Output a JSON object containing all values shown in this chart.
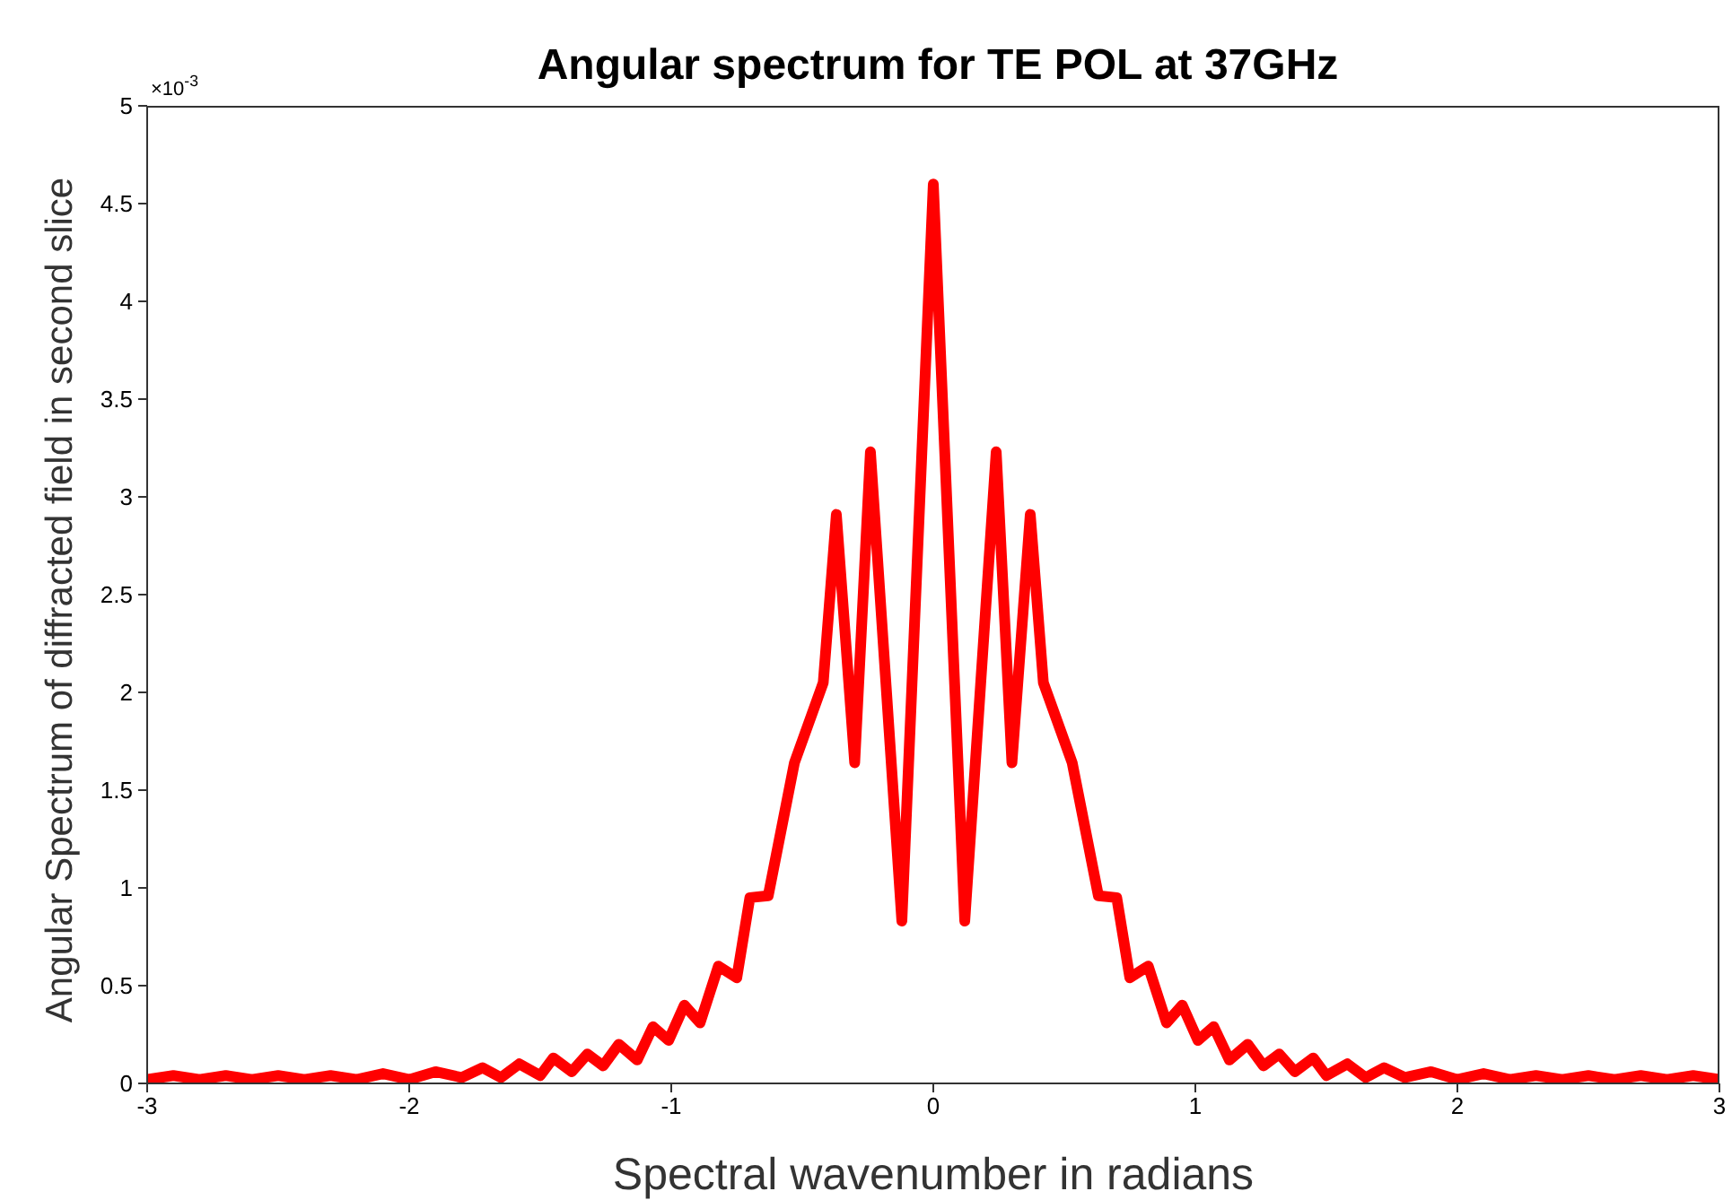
{
  "chart_data": {
    "type": "line",
    "title": "Angular spectrum for TE POL at 37GHz",
    "xlabel": "Spectral wavenumber in radians",
    "ylabel": "Angular Spectrum of diffracted field in second slice",
    "annotations": [
      "×10$^{-3}$"
    ],
    "series": [
      {
        "color": "#ff0000",
        "x": [
          -3.0,
          -2.9,
          -2.8,
          -2.7,
          -2.6,
          -2.5,
          -2.4,
          -2.3,
          -2.2,
          -2.1,
          -2.0,
          -1.9,
          -1.8,
          -1.72,
          -1.65,
          -1.58,
          -1.5,
          -1.45,
          -1.38,
          -1.32,
          -1.26,
          -1.2,
          -1.13,
          -1.07,
          -1.01,
          -0.95,
          -0.89,
          -0.82,
          -0.75,
          -0.7,
          -0.63,
          -0.53,
          -0.42,
          -0.37,
          -0.3,
          -0.24,
          -0.12,
          0,
          0.12,
          0.24,
          0.3,
          0.37,
          0.42,
          0.53,
          0.63,
          0.7,
          0.75,
          0.82,
          0.89,
          0.95,
          1.01,
          1.07,
          1.13,
          1.2,
          1.26,
          1.32,
          1.38,
          1.45,
          1.5,
          1.58,
          1.65,
          1.72,
          1.8,
          1.9,
          2.0,
          2.1,
          2.2,
          2.3,
          2.4,
          2.5,
          2.6,
          2.7,
          2.8,
          2.9,
          3.0
        ],
        "values": [
          0.02,
          0.04,
          0.02,
          0.04,
          0.02,
          0.04,
          0.02,
          0.04,
          0.02,
          0.05,
          0.02,
          0.06,
          0.03,
          0.08,
          0.03,
          0.1,
          0.04,
          0.13,
          0.06,
          0.15,
          0.09,
          0.2,
          0.12,
          0.29,
          0.22,
          0.4,
          0.31,
          0.6,
          0.54,
          0.95,
          0.96,
          1.64,
          2.05,
          2.91,
          1.64,
          3.23,
          0.83,
          4.6,
          0.83,
          3.23,
          1.64,
          2.91,
          2.05,
          1.64,
          0.96,
          0.95,
          0.54,
          0.6,
          0.31,
          0.4,
          0.22,
          0.29,
          0.12,
          0.2,
          0.09,
          0.15,
          0.06,
          0.13,
          0.04,
          0.1,
          0.03,
          0.08,
          0.03,
          0.06,
          0.02,
          0.05,
          0.02,
          0.04,
          0.02,
          0.04,
          0.02,
          0.04,
          0.02,
          0.04,
          0.02
        ]
      }
    ],
    "xlim": [
      -3,
      3
    ],
    "xticks": [
      -3,
      -2,
      -1,
      0,
      1,
      2,
      3
    ],
    "ylim": [
      0,
      5
    ],
    "yticks": [
      0,
      0.5,
      1,
      1.5,
      2,
      2.5,
      3,
      3.5,
      4,
      4.5,
      5
    ],
    "grid": false,
    "legend": false,
    "marker": "none",
    "line_style": "solid"
  }
}
